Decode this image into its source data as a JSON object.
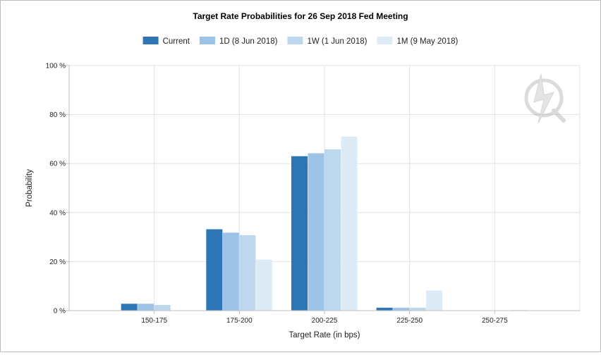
{
  "chart_data": {
    "type": "bar",
    "title": "Target Rate Probabilities for 26 Sep 2018 Fed Meeting",
    "xlabel": "Target Rate (in bps)",
    "ylabel": "Probability",
    "categories": [
      "150-175",
      "175-200",
      "200-225",
      "225-250",
      "250-275"
    ],
    "series": [
      {
        "name": "Current",
        "color": "#2E75B6",
        "values": [
          2.8,
          33.2,
          63.0,
          1.2,
          0.0
        ]
      },
      {
        "name": "1D (8 Jun 2018)",
        "color": "#9DC3E6",
        "values": [
          2.8,
          31.8,
          64.2,
          1.2,
          0.0
        ]
      },
      {
        "name": "1W (1 Jun 2018)",
        "color": "#BDD7EE",
        "values": [
          2.3,
          30.8,
          65.8,
          1.2,
          0.0
        ]
      },
      {
        "name": "1M (9 May 2018)",
        "color": "#DDEBF7",
        "values": [
          0.0,
          20.8,
          71.0,
          8.2,
          0.3
        ]
      }
    ],
    "ylim": [
      0,
      100
    ],
    "yticks": [
      0,
      20,
      40,
      60,
      80,
      100
    ],
    "ytick_labels": [
      "0 %",
      "20 %",
      "40 %",
      "60 %",
      "80 %",
      "100 %"
    ],
    "grid": true,
    "legend_position": "top"
  },
  "watermark": {
    "icon": "lightning-q-logo"
  }
}
